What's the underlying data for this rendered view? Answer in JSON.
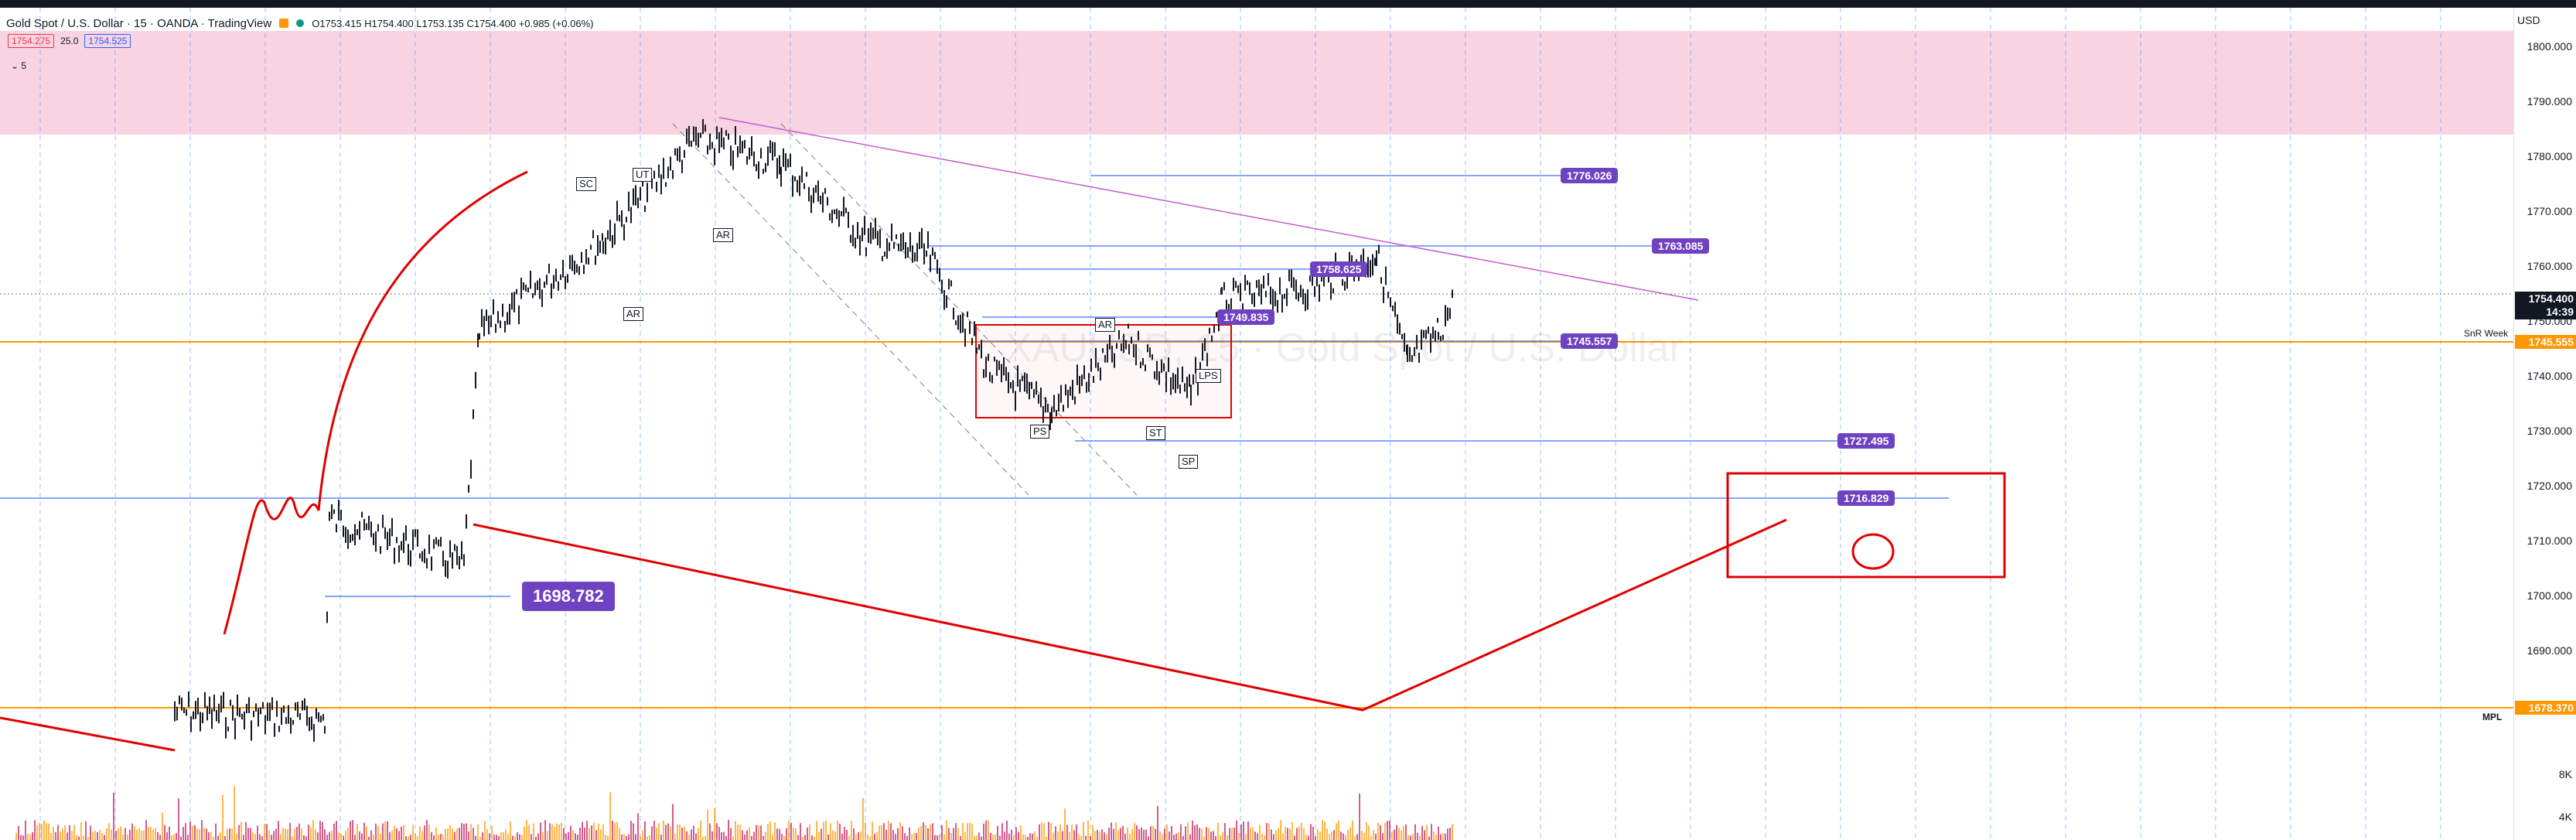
{
  "header": {
    "title": "Gold Spot / U.S. Dollar · 15 · OANDA · TradingView",
    "ohlc": "O1753.415 H1754.400 L1753.135 C1754.400 +0.985 (+0.06%)",
    "bid": "1754.275",
    "spread": "25.0",
    "ask": "1754.525",
    "indicator_toggle": "5",
    "colors": {
      "bid": "#f23645",
      "ask": "#2962ff"
    }
  },
  "axis": {
    "currency": "USD",
    "ticks": [
      "1800.000",
      "1790.000",
      "1780.000",
      "1770.000",
      "1760.000",
      "1750.000",
      "1740.000",
      "1730.000",
      "1720.000",
      "1710.000",
      "1700.000",
      "1690.000",
      "1680.000"
    ],
    "volume_ticks": [
      "8K",
      "4K"
    ],
    "current_price": "1754.400",
    "countdown": "14:39",
    "tag_week": "1745.555",
    "tag_mpl": "1678.370"
  },
  "line_labels": {
    "snr_week": "SnR Week",
    "mpl": "MPL"
  },
  "level_labels": {
    "l1776": "1776.026",
    "l1763": "1763.085",
    "l1758": "1758.625",
    "l1749": "1749.835",
    "l1745": "1745.557",
    "l1727": "1727.495",
    "l1716": "1716.829",
    "l1698": "1698.782"
  },
  "markers": {
    "sc": "SC",
    "ut": "UT",
    "ar_top": "AR",
    "ar_low": "AR",
    "ar_mid": "AR",
    "ps": "PS",
    "st": "ST",
    "sp": "SP",
    "lps": "LPS"
  },
  "watermark": "XAUUSD, 15 · Gold Spot / U.S. Dollar",
  "colors": {
    "supply_zone": "#f8d3e2",
    "purple_label": "#6f42c1",
    "orange": "#ff9800",
    "red": "#e00000",
    "candle": "#131722",
    "blue_line": "#2962ff"
  }
}
